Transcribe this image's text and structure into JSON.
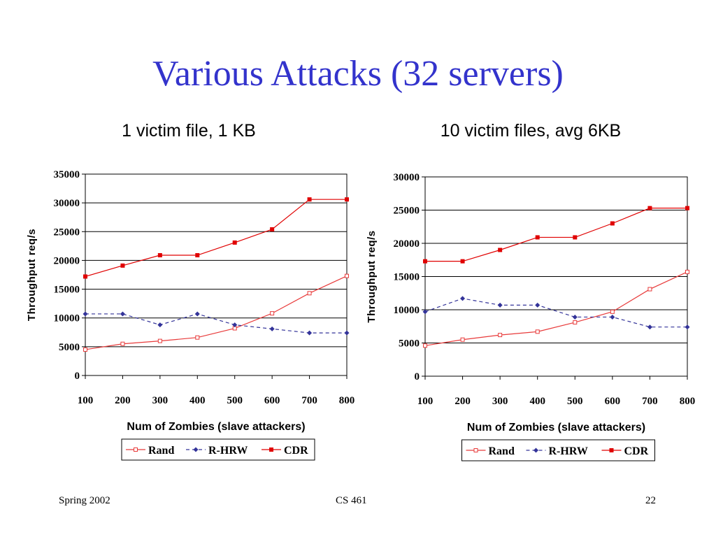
{
  "slide": {
    "title": "Various Attacks (32 servers)",
    "footer_left": "Spring 2002",
    "footer_center": "CS 461",
    "footer_right": "22"
  },
  "colors": {
    "title": "#3333cc",
    "rand": "#e83a3a",
    "rhrw": "#333399",
    "cdr": "#e00000"
  },
  "chart_data": [
    {
      "type": "line",
      "subtitle": "1 victim file, 1 KB",
      "x": [
        100,
        200,
        300,
        400,
        500,
        600,
        700,
        800
      ],
      "xlabel": "Num of Zombies (slave attackers)",
      "ylabel": "Throughput req/s",
      "ylim": [
        0,
        35000
      ],
      "yticks": [
        0,
        5000,
        10000,
        15000,
        20000,
        25000,
        30000,
        35000
      ],
      "grid": true,
      "legend": "bottom",
      "series": [
        {
          "name": "Rand",
          "values": [
            4500,
            5500,
            6000,
            6600,
            8200,
            10800,
            14300,
            17300
          ]
        },
        {
          "name": "R-HRW",
          "values": [
            10700,
            10700,
            8800,
            10700,
            8800,
            8100,
            7400,
            7400
          ]
        },
        {
          "name": "CDR",
          "values": [
            17200,
            19100,
            20900,
            20900,
            23100,
            25400,
            30600,
            30600
          ]
        }
      ]
    },
    {
      "type": "line",
      "subtitle": "10 victim files, avg 6KB",
      "x": [
        100,
        200,
        300,
        400,
        500,
        600,
        700,
        800
      ],
      "xlabel": "Num of Zombies (slave attackers)",
      "ylabel": "Throughput req/s",
      "ylim": [
        0,
        30000
      ],
      "yticks": [
        0,
        5000,
        10000,
        15000,
        20000,
        25000,
        30000
      ],
      "grid": true,
      "legend": "bottom",
      "series": [
        {
          "name": "Rand",
          "values": [
            4600,
            5500,
            6200,
            6700,
            8100,
            9700,
            13100,
            15700
          ]
        },
        {
          "name": "R-HRW",
          "values": [
            9700,
            11700,
            10700,
            10700,
            8900,
            8900,
            7400,
            7400
          ]
        },
        {
          "name": "CDR",
          "values": [
            17300,
            17300,
            19000,
            20900,
            20900,
            23000,
            25300,
            25300
          ]
        }
      ]
    }
  ]
}
